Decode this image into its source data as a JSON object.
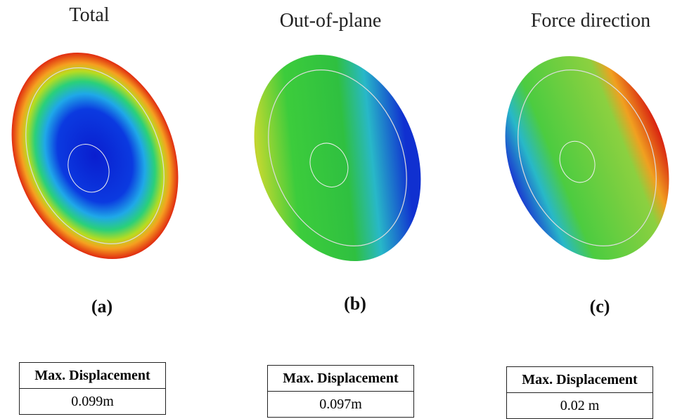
{
  "panels": [
    {
      "title": "Total",
      "label": "(a)",
      "table": {
        "header": "Max. Displacement",
        "value": "0.099m"
      }
    },
    {
      "title": "Out-of-plane",
      "label": "(b)",
      "table": {
        "header": "Max. Displacement",
        "value": "0.097m"
      }
    },
    {
      "title": "Force direction",
      "label": "(c)",
      "table": {
        "header": "Max. Displacement",
        "value": "0.02 m"
      }
    }
  ]
}
